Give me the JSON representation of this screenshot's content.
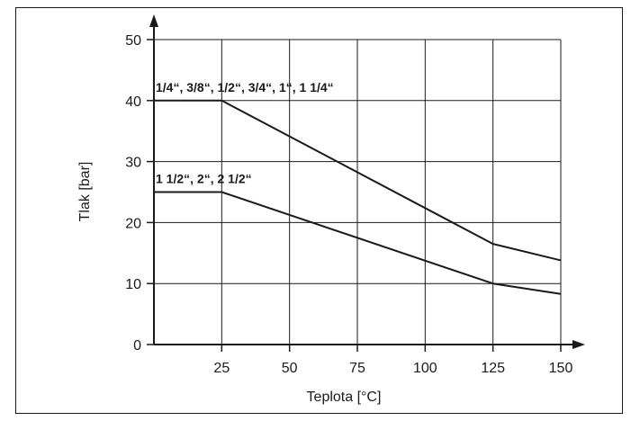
{
  "chart_data": {
    "type": "line",
    "title": "",
    "xlabel": "Teplota [°C]",
    "ylabel": "Tlak [bar]",
    "xlim": [
      0,
      150
    ],
    "ylim": [
      0,
      50
    ],
    "x_ticks": [
      25,
      50,
      75,
      100,
      125,
      150
    ],
    "y_ticks": [
      0,
      10,
      20,
      30,
      40,
      50
    ],
    "grid": true,
    "series": [
      {
        "name": "1/4“, 3/8“, 1/2“, 3/4“, 1“, 1 1/4“",
        "x": [
          0,
          25,
          125,
          150
        ],
        "y": [
          40,
          40,
          16.5,
          13.8
        ]
      },
      {
        "name": "1 1/2“, 2“, 2 1/2“",
        "x": [
          0,
          25,
          125,
          150
        ],
        "y": [
          25,
          25,
          10,
          8.3
        ]
      }
    ]
  },
  "colors": {
    "line": "#1a1a1a",
    "grid": "#1a1a1a",
    "background": "#ffffff"
  }
}
